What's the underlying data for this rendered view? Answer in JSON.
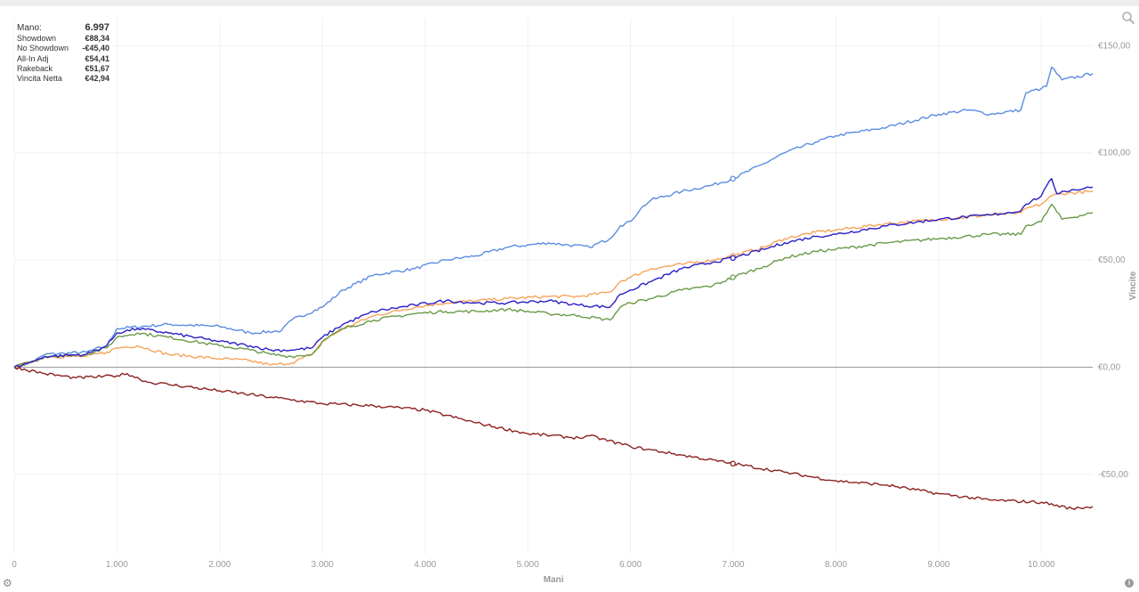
{
  "stats": {
    "rows": [
      {
        "label": "Mano:",
        "value": "6.997"
      },
      {
        "label": "Showdown",
        "value": "€88,34"
      },
      {
        "label": "No Showdown",
        "value": "-€45,40"
      },
      {
        "label": "All-In Adj",
        "value": "€54,41"
      },
      {
        "label": "Rakeback",
        "value": "€51,67"
      },
      {
        "label": "Vincita Netta",
        "value": "€42,94"
      }
    ]
  },
  "chart_data": {
    "type": "line",
    "xlabel": "Mani",
    "ylabel": "Vincite",
    "xlim": [
      0,
      10500
    ],
    "ylim": [
      -87,
      163
    ],
    "x_ticks": [
      0,
      1000,
      2000,
      3000,
      4000,
      5000,
      6000,
      7000,
      8000,
      9000,
      10000
    ],
    "x_tick_labels": [
      "0",
      "1.000",
      "2.000",
      "3.000",
      "4.000",
      "5.000",
      "6.000",
      "7.000",
      "8.000",
      "9.000",
      "10.000"
    ],
    "y_ticks": [
      150,
      100,
      50,
      0,
      -50
    ],
    "y_tick_labels": [
      "€150,00",
      "€100,00",
      "€50,00",
      "€0,00",
      "-€50,00"
    ],
    "grid": true,
    "zero_line": true,
    "hover_x": 6997,
    "series": [
      {
        "color": "#5b8de0",
        "x": [
          0,
          200,
          300,
          700,
          900,
          1000,
          1500,
          2000,
          2300,
          2600,
          2700,
          3000,
          3200,
          3500,
          3900,
          4200,
          4500,
          4800,
          5200,
          5600,
          5800,
          5900,
          6000,
          6100,
          6200,
          6500,
          6800,
          7000,
          7300,
          7500,
          7800,
          8000,
          8500,
          9000,
          9300,
          9500,
          9800,
          9850,
          10000,
          10050,
          10100,
          10200,
          10500
        ],
        "y": [
          0,
          3,
          6,
          7,
          10,
          18,
          20,
          19,
          16,
          17,
          22,
          28,
          36,
          43,
          46,
          50,
          52,
          56,
          58,
          56,
          60,
          66,
          68,
          74,
          78,
          82,
          85,
          88,
          95,
          100,
          105,
          108,
          112,
          118,
          120,
          118,
          120,
          128,
          130,
          131,
          140,
          134,
          137
        ]
      },
      {
        "color": "#f6a35a",
        "x": [
          0,
          200,
          300,
          700,
          900,
          1000,
          1200,
          1500,
          2000,
          2300,
          2500,
          2700,
          2900,
          3000,
          3200,
          3500,
          3900,
          4200,
          4500,
          4800,
          5200,
          5500,
          5800,
          5900,
          6000,
          6200,
          6500,
          6800,
          7000,
          7300,
          7500,
          7800,
          8000,
          8500,
          9000,
          9500,
          9800,
          9850,
          10000,
          10100,
          10200,
          10500
        ],
        "y": [
          0,
          3,
          5,
          5,
          7,
          9,
          10,
          6,
          4,
          3,
          1,
          2,
          6,
          12,
          18,
          24,
          28,
          30,
          31,
          32,
          33,
          33,
          35,
          40,
          42,
          46,
          48,
          50,
          52,
          56,
          60,
          63,
          64,
          67,
          69,
          71,
          72,
          74,
          76,
          80,
          81,
          82
        ]
      },
      {
        "color": "#6a9a48",
        "x": [
          0,
          200,
          300,
          700,
          900,
          1000,
          1200,
          1500,
          2000,
          2300,
          2500,
          2700,
          2900,
          3000,
          3200,
          3500,
          3900,
          4200,
          4500,
          4800,
          5200,
          5500,
          5800,
          5900,
          6000,
          6200,
          6500,
          6800,
          7000,
          7300,
          7500,
          7800,
          8000,
          8500,
          9000,
          9500,
          9800,
          9850,
          10000,
          10100,
          10200,
          10500
        ],
        "y": [
          0,
          3,
          5,
          6,
          9,
          14,
          16,
          14,
          10,
          8,
          6,
          5,
          6,
          12,
          18,
          22,
          25,
          26,
          26,
          27,
          25,
          24,
          22,
          28,
          30,
          32,
          36,
          38,
          42,
          47,
          51,
          54,
          55,
          58,
          60,
          62,
          62,
          66,
          68,
          76,
          69,
          72
        ]
      },
      {
        "color": "#2a1ec8",
        "x": [
          0,
          200,
          300,
          700,
          900,
          1000,
          1200,
          1500,
          2000,
          2300,
          2500,
          2700,
          2900,
          3000,
          3200,
          3500,
          3900,
          4200,
          4500,
          4800,
          5200,
          5500,
          5800,
          5900,
          6000,
          6200,
          6500,
          6800,
          7000,
          7300,
          7500,
          7800,
          8000,
          8500,
          9000,
          9500,
          9800,
          9850,
          10000,
          10100,
          10150,
          10200,
          10500
        ],
        "y": [
          0,
          3,
          5,
          6,
          10,
          16,
          18,
          16,
          12,
          10,
          8,
          8,
          9,
          14,
          20,
          26,
          29,
          31,
          30,
          30,
          31,
          29,
          28,
          34,
          36,
          40,
          46,
          49,
          51,
          55,
          58,
          61,
          62,
          66,
          69,
          71,
          73,
          76,
          80,
          88,
          81,
          82,
          84
        ]
      },
      {
        "color": "#8b2121",
        "x": [
          0,
          300,
          600,
          1000,
          1100,
          1300,
          1500,
          2000,
          2500,
          3000,
          3500,
          4000,
          4500,
          5000,
          5500,
          5600,
          6000,
          6500,
          7000,
          7500,
          8000,
          8500,
          9000,
          9500,
          10000,
          10300,
          10500
        ],
        "y": [
          0,
          -3,
          -5,
          -4,
          -3,
          -7,
          -8,
          -11,
          -14,
          -17,
          -18,
          -20,
          -26,
          -31,
          -33,
          -32,
          -37,
          -41,
          -45,
          -49,
          -53,
          -55,
          -59,
          -62,
          -63,
          -66,
          -65
        ]
      }
    ]
  }
}
